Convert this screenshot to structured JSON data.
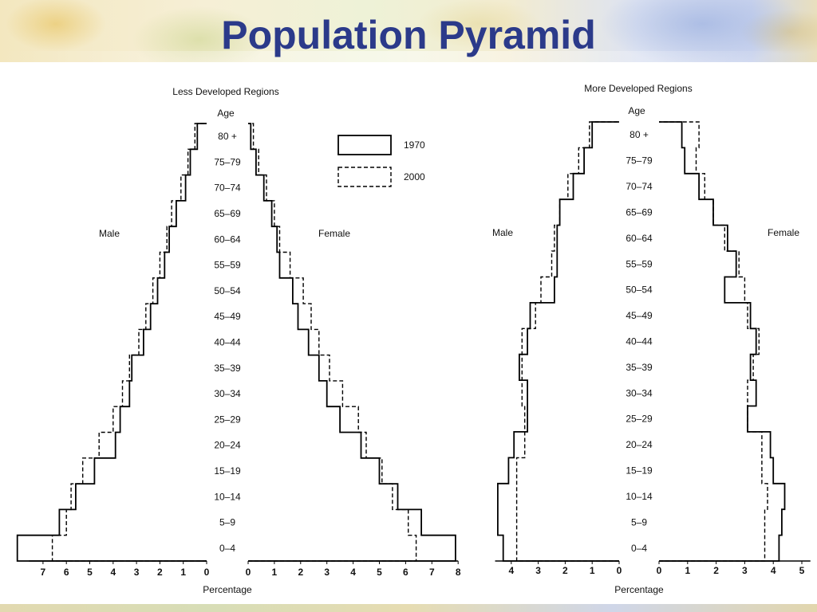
{
  "slide": {
    "title": "Population Pyramid"
  },
  "chart_data": [
    {
      "type": "bar",
      "title": "Less Developed Regions",
      "age_label": "Age",
      "xlabel": "Percentage",
      "left_label": "Male",
      "right_label": "Female",
      "age_groups": [
        "0–4",
        "5–9",
        "10–14",
        "15–19",
        "20–24",
        "25–29",
        "30–34",
        "35–39",
        "40–44",
        "45–49",
        "50–54",
        "55–59",
        "60–64",
        "65–69",
        "70–74",
        "75–79",
        "80 +"
      ],
      "x_ticks_male": [
        "7",
        "6",
        "5",
        "4",
        "3",
        "2",
        "1",
        "0"
      ],
      "x_ticks_female": [
        "0",
        "1",
        "2",
        "3",
        "4",
        "5",
        "6",
        "7",
        "8"
      ],
      "xlim_male": [
        0,
        7.6
      ],
      "xlim_female": [
        0,
        8
      ],
      "series": [
        {
          "name": "1970",
          "male": [
            8.1,
            6.3,
            5.6,
            4.8,
            3.9,
            3.7,
            3.3,
            3.2,
            2.7,
            2.4,
            2.1,
            1.8,
            1.6,
            1.3,
            0.9,
            0.7,
            0.4
          ],
          "female": [
            7.9,
            6.6,
            5.7,
            5.0,
            4.3,
            3.5,
            3.0,
            2.7,
            2.3,
            1.9,
            1.7,
            1.2,
            1.1,
            0.9,
            0.6,
            0.3,
            0.1
          ]
        },
        {
          "name": "2000",
          "male": [
            6.6,
            6.0,
            5.8,
            5.3,
            4.6,
            4.0,
            3.6,
            3.3,
            2.9,
            2.6,
            2.3,
            2.0,
            1.7,
            1.5,
            1.1,
            0.8,
            0.5
          ],
          "female": [
            6.4,
            6.1,
            5.5,
            5.1,
            4.5,
            4.2,
            3.6,
            3.1,
            2.7,
            2.4,
            2.1,
            1.6,
            1.2,
            1.0,
            0.7,
            0.4,
            0.2
          ]
        }
      ]
    },
    {
      "type": "bar",
      "title": "More Developed Regions",
      "age_label": "Age",
      "xlabel": "Percentage",
      "left_label": "Male",
      "right_label": "Female",
      "age_groups": [
        "0–4",
        "5–9",
        "10–14",
        "15–19",
        "20–24",
        "25–29",
        "30–34",
        "35–39",
        "40–44",
        "45–49",
        "50–54",
        "55–59",
        "60–64",
        "65–69",
        "70–74",
        "75–79",
        "80 +"
      ],
      "x_ticks_male": [
        "4",
        "3",
        "2",
        "1",
        "0"
      ],
      "x_ticks_female": [
        "0",
        "1",
        "2",
        "3",
        "4",
        "5"
      ],
      "xlim_male": [
        0,
        4.6
      ],
      "xlim_female": [
        0,
        5.3
      ],
      "series": [
        {
          "name": "1970",
          "male": [
            4.3,
            4.5,
            4.5,
            4.1,
            3.9,
            3.4,
            3.4,
            3.7,
            3.4,
            3.3,
            2.4,
            2.3,
            2.3,
            2.2,
            1.7,
            1.3,
            1.0
          ],
          "female": [
            4.2,
            4.3,
            4.4,
            4.0,
            3.9,
            3.1,
            3.4,
            3.2,
            3.4,
            3.2,
            2.3,
            2.7,
            2.4,
            1.9,
            1.4,
            0.9,
            0.8
          ]
        },
        {
          "name": "2000",
          "male": [
            3.8,
            3.8,
            3.8,
            3.8,
            3.5,
            3.5,
            3.6,
            3.6,
            3.6,
            3.1,
            2.9,
            2.5,
            2.4,
            2.2,
            1.9,
            1.5,
            1.1
          ],
          "female": [
            3.7,
            3.7,
            3.8,
            3.6,
            3.6,
            3.1,
            3.1,
            3.3,
            3.5,
            3.1,
            3.0,
            2.8,
            2.3,
            1.9,
            1.6,
            1.3,
            1.4
          ]
        }
      ]
    }
  ]
}
